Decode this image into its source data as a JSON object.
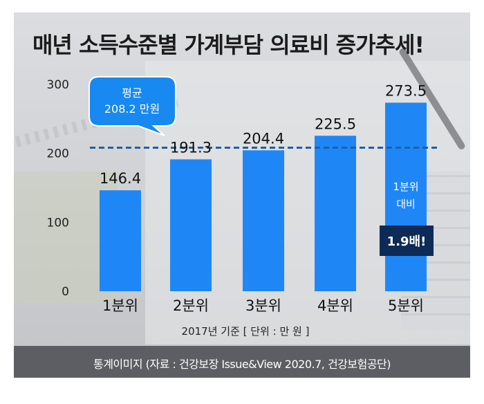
{
  "title": "매년 소득수준별 가계부담 의료비 증가추세!",
  "source": "통계이미지 (자료 : 건강보장 Issue&View 2020.7, 건강보험공단)",
  "colors": {
    "bar": "#1f87f5",
    "average_line": "#1e5fa8",
    "callout": "#1789f0",
    "ratio_box": "#0d2b56"
  },
  "chart_data": {
    "type": "bar",
    "title": "매년 소득수준별 가계부담 의료비 증가추세!",
    "categories": [
      "1분위",
      "2분위",
      "3분위",
      "4분위",
      "5분위"
    ],
    "values": [
      146.4,
      191.3,
      204.4,
      225.5,
      273.5
    ],
    "value_labels": [
      "146.4",
      "191.3",
      "204.4",
      "225.5",
      "273.5"
    ],
    "ylim": [
      0,
      300
    ],
    "yticks": [
      "0",
      "100",
      "200",
      "300"
    ],
    "ytick_values": [
      0,
      100,
      200,
      300
    ],
    "grid": false,
    "unit_note": "2017년 기준 [ 단위 : 만 원 ]",
    "average": {
      "value": 208.2,
      "label_line1": "평균",
      "label_line2": "208.2 만원"
    },
    "annotation": {
      "line1": "1분위",
      "line2": "대비",
      "ratio": "1.9배!"
    }
  }
}
